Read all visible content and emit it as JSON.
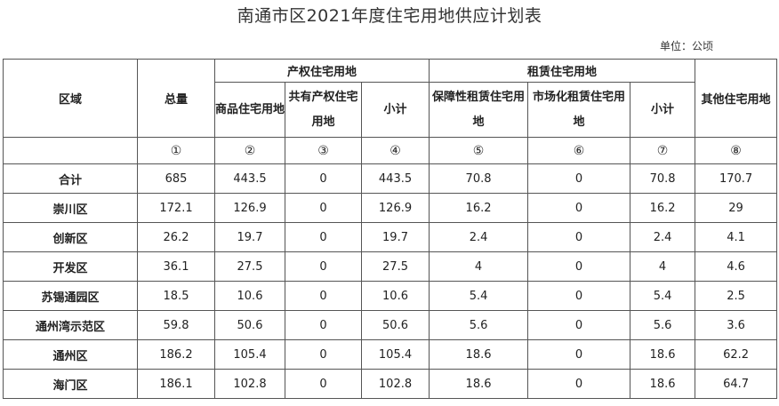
{
  "title": "南通市区2021年度住宅用地供应计划表",
  "unit": "单位：公顷",
  "headers": {
    "region": "区域",
    "total": "总量",
    "property_group": "产权住宅用地",
    "commercial": "商品住宅用地",
    "shared": "共有产权住宅用地",
    "subtotal_property": "小计",
    "rental_group": "租赁住宅用地",
    "affordable_rental": "保障性租赁住宅用地",
    "market_rental": "市场化租赁住宅用地",
    "subtotal_rental": "小计",
    "other": "其他住宅用地"
  },
  "column_numbers": [
    "①",
    "②",
    "③",
    "④",
    "⑤",
    "⑥",
    "⑦",
    "⑧"
  ],
  "rows": [
    {
      "region": "合计",
      "values": [
        "685",
        "443.5",
        "0",
        "443.5",
        "70.8",
        "0",
        "70.8",
        "170.7"
      ]
    },
    {
      "region": "崇川区",
      "values": [
        "172.1",
        "126.9",
        "0",
        "126.9",
        "16.2",
        "0",
        "16.2",
        "29"
      ]
    },
    {
      "region": "创新区",
      "values": [
        "26.2",
        "19.7",
        "0",
        "19.7",
        "2.4",
        "0",
        "2.4",
        "4.1"
      ]
    },
    {
      "region": "开发区",
      "values": [
        "36.1",
        "27.5",
        "0",
        "27.5",
        "4",
        "0",
        "4",
        "4.6"
      ]
    },
    {
      "region": "苏锡通园区",
      "values": [
        "18.5",
        "10.6",
        "0",
        "10.6",
        "5.4",
        "0",
        "5.4",
        "2.5"
      ]
    },
    {
      "region": "通州湾示范区",
      "values": [
        "59.8",
        "50.6",
        "0",
        "50.6",
        "5.6",
        "0",
        "5.6",
        "3.6"
      ]
    },
    {
      "region": "通州区",
      "values": [
        "186.2",
        "105.4",
        "0",
        "105.4",
        "18.6",
        "0",
        "18.6",
        "62.2"
      ]
    },
    {
      "region": "海门区",
      "values": [
        "186.1",
        "102.8",
        "0",
        "102.8",
        "18.6",
        "0",
        "18.6",
        "64.7"
      ]
    }
  ]
}
